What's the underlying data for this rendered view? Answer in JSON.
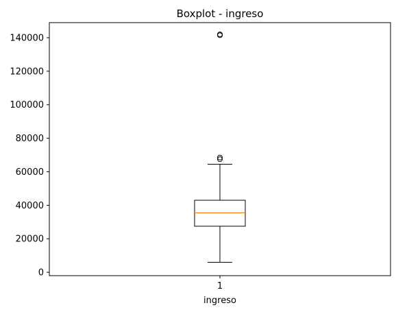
{
  "chart_data": {
    "type": "boxplot",
    "title": "Boxplot - ingreso",
    "xlabel": "ingreso",
    "ylabel": "",
    "categories": [
      "1"
    ],
    "ylim": [
      -2000,
      149000
    ],
    "yticks": [
      0,
      20000,
      40000,
      60000,
      80000,
      100000,
      120000,
      140000
    ],
    "ytick_labels": [
      "0",
      "20000",
      "40000",
      "60000",
      "80000",
      "100000",
      "120000",
      "140000"
    ],
    "grid": false,
    "boxes": [
      {
        "category": "1",
        "whisker_low": 6000,
        "q1": 27500,
        "median": 35500,
        "q3": 43000,
        "whisker_high": 64500,
        "outliers": [
          67500,
          68500,
          141500,
          142000
        ]
      }
    ],
    "colors": {
      "box": "#000000",
      "median": "#ff7f0e",
      "outlier": "#000000",
      "background": "#ffffff"
    }
  }
}
